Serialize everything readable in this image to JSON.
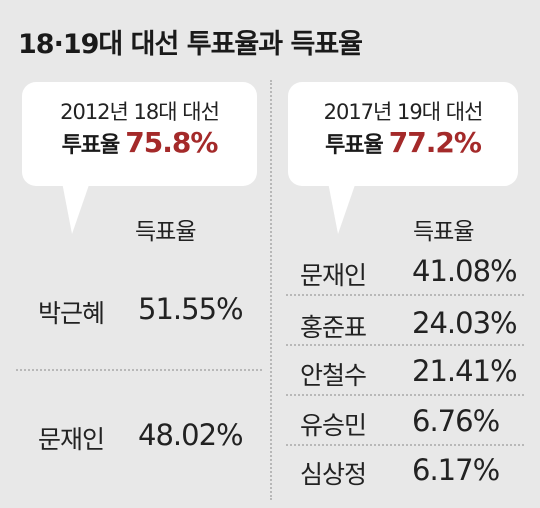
{
  "title": "18·19대 대선 투표율과 득표율",
  "left": {
    "election": "2012년 18대 대선",
    "turnout_label": "투표율",
    "turnout_value": "75.8%",
    "header": "득표율",
    "candidates": [
      {
        "name": "박근혜",
        "share": "51.55%"
      },
      {
        "name": "문재인",
        "share": "48.02%"
      }
    ]
  },
  "right": {
    "election": "2017년 19대 대선",
    "turnout_label": "투표율",
    "turnout_value": "77.2%",
    "header": "득표율",
    "candidates": [
      {
        "name": "문재인",
        "share": "41.08%"
      },
      {
        "name": "홍준표",
        "share": "24.03%"
      },
      {
        "name": "안철수",
        "share": "21.41%"
      },
      {
        "name": "유승민",
        "share": "6.76%"
      },
      {
        "name": "심상정",
        "share": "6.17%"
      }
    ]
  },
  "colors": {
    "background": "#e8e8e8",
    "accent": "#a42a2a",
    "bubble": "#ffffff"
  }
}
